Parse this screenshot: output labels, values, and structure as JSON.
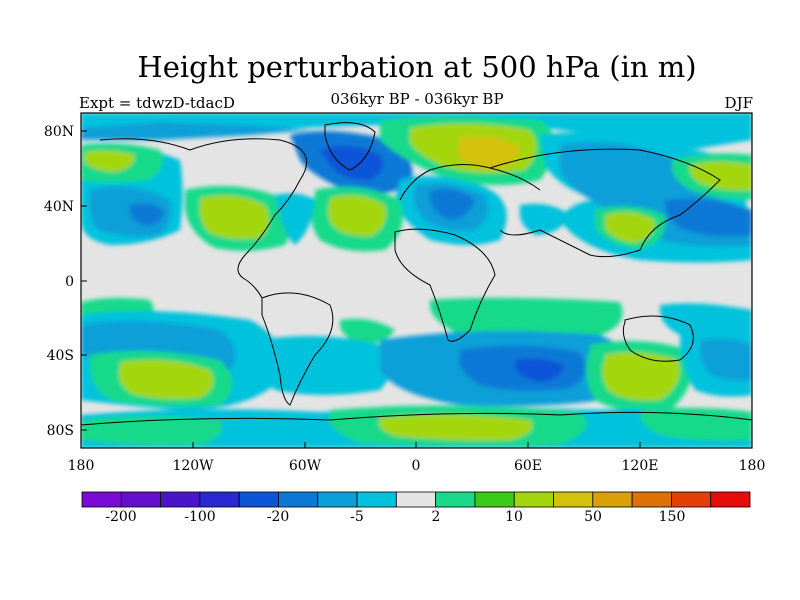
{
  "title": "Height perturbation at 500 hPa (in m)",
  "subtitle": "036kyr BP - 036kyr BP",
  "left_label": "Expt = tdwzD-tdacD",
  "right_label": "DJF",
  "x_ticks": [
    "180",
    "120W",
    "60W",
    "0",
    "60E",
    "120E",
    "180"
  ],
  "y_ticks": [
    "80N",
    "40N",
    "0",
    "40S",
    "80S"
  ],
  "colorbar": {
    "colors": [
      "#7b0ad6",
      "#650ecf",
      "#4a14ca",
      "#2a28d2",
      "#0a55d8",
      "#0b79d6",
      "#0a9fd8",
      "#00c2dc",
      "#e4e4e4",
      "#19d98a",
      "#3acb16",
      "#a4d60e",
      "#d3c10a",
      "#daa008",
      "#df7006",
      "#e24006",
      "#e60c0a"
    ],
    "labels": [
      "-200",
      "-100",
      "-20",
      "-5",
      "2",
      "10",
      "50",
      "150"
    ]
  },
  "legend_colors": {
    "background": "#e4e4e4",
    "coastline": "#000000"
  }
}
